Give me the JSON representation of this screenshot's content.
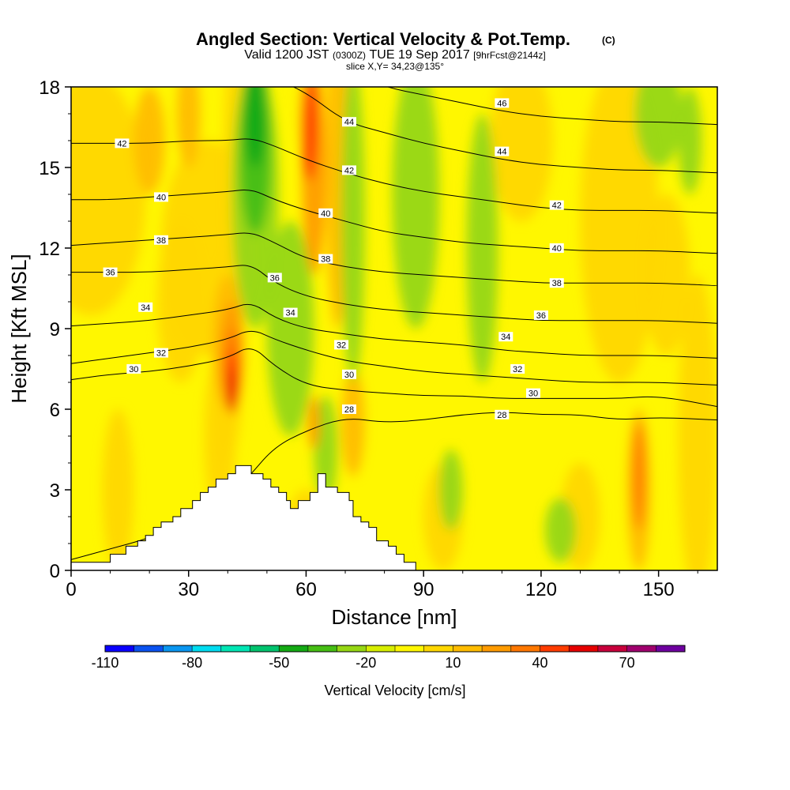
{
  "chart_data": {
    "type": "heatmap",
    "title": "Angled Section: Vertical Velocity & Pot.Temp.",
    "title_unit": "(C)",
    "subtitle": {
      "part1": "Valid 1200 JST",
      "part2": "(0300Z)",
      "part3": "TUE 19 Sep 2017",
      "part4": "[9hrFcst@2144z]"
    },
    "slice_text": "slice X,Y= 34,23@135°",
    "xlabel": "Distance [nm]",
    "ylabel": "Height [Kft MSL]",
    "xlim": [
      0,
      165
    ],
    "ylim": [
      0,
      18
    ],
    "x_ticks": [
      "0",
      "30",
      "60",
      "90",
      "120",
      "150"
    ],
    "y_ticks": [
      "0",
      "3",
      "6",
      "9",
      "12",
      "15",
      "18"
    ],
    "colorbar": {
      "label": "Vertical Velocity [cm/s]",
      "tick_labels": [
        "-110",
        "-80",
        "-50",
        "-20",
        "10",
        "40",
        "70"
      ],
      "colors": [
        "#0a00ff",
        "#0a52f0",
        "#0a96f0",
        "#00dcf0",
        "#00e6b4",
        "#00c36e",
        "#14aa14",
        "#46be14",
        "#96d714",
        "#d7ee00",
        "#fff700",
        "#ffd700",
        "#ffbc00",
        "#ff9b00",
        "#ff7800",
        "#ff3c00",
        "#e60000",
        "#c8003c",
        "#a0006e",
        "#6e00a0"
      ]
    },
    "terrain": {
      "x": [
        0,
        10,
        10,
        14,
        14,
        17,
        17,
        19,
        19,
        21,
        21,
        23,
        23,
        26,
        26,
        28,
        28,
        31,
        31,
        33,
        33,
        35,
        35,
        37,
        37,
        40,
        40,
        42,
        42,
        46,
        46,
        49,
        49,
        51,
        51,
        53,
        53,
        55,
        55,
        56,
        56,
        58,
        58,
        61,
        61,
        63,
        63,
        65,
        65,
        68,
        68,
        71,
        71,
        72,
        72,
        74,
        74,
        76,
        76,
        78,
        78,
        81,
        81,
        83,
        83,
        85,
        85,
        88,
        88,
        90,
        165
      ],
      "y": [
        0.3,
        0.3,
        0.6,
        0.6,
        0.9,
        0.9,
        1.1,
        1.1,
        1.3,
        1.3,
        1.6,
        1.6,
        1.8,
        1.8,
        2.0,
        2.0,
        2.3,
        2.3,
        2.6,
        2.6,
        2.9,
        2.9,
        3.1,
        3.1,
        3.4,
        3.4,
        3.6,
        3.6,
        3.9,
        3.9,
        3.6,
        3.6,
        3.4,
        3.4,
        3.1,
        3.1,
        2.9,
        2.9,
        2.6,
        2.6,
        2.3,
        2.3,
        2.6,
        2.6,
        2.9,
        2.9,
        3.6,
        3.6,
        3.1,
        3.1,
        2.9,
        2.9,
        2.6,
        2.6,
        2.0,
        2.0,
        1.8,
        1.8,
        1.6,
        1.6,
        1.1,
        1.1,
        0.9,
        0.9,
        0.6,
        0.6,
        0.3,
        0.3,
        0.0,
        0.0,
        0.0
      ]
    },
    "theta_contours": [
      {
        "value": 28,
        "heights": [
          0.4,
          0.8,
          1.2,
          1.8,
          2.6,
          3.6,
          4.6,
          5.2,
          5.7,
          5.5,
          5.6,
          5.8,
          5.9,
          5.8,
          5.8,
          5.6,
          5.7,
          5.6
        ]
      },
      {
        "value": 30,
        "heights": [
          7.1,
          7.3,
          7.4,
          7.6,
          7.9,
          8.4,
          7.6,
          6.9,
          6.7,
          6.6,
          6.5,
          6.5,
          6.4,
          6.4,
          6.4,
          6.4,
          6.5,
          6.1
        ]
      },
      {
        "value": 32,
        "heights": [
          7.7,
          7.9,
          8.1,
          8.3,
          8.6,
          9.0,
          8.6,
          8.2,
          7.8,
          7.6,
          7.4,
          7.3,
          7.2,
          7.1,
          7.0,
          7.0,
          7.0,
          6.9
        ]
      },
      {
        "value": 34,
        "heights": [
          9.1,
          9.2,
          9.3,
          9.5,
          9.7,
          10.0,
          9.4,
          9.0,
          8.8,
          8.6,
          8.5,
          8.4,
          8.2,
          8.1,
          8.0,
          8.0,
          8.0,
          7.9
        ]
      },
      {
        "value": 36,
        "heights": [
          11.1,
          11.1,
          11.1,
          11.2,
          11.3,
          11.4,
          10.7,
          10.2,
          9.9,
          9.7,
          9.6,
          9.5,
          9.4,
          9.3,
          9.3,
          9.3,
          9.3,
          9.2
        ]
      },
      {
        "value": 38,
        "heights": [
          12.1,
          12.2,
          12.3,
          12.4,
          12.5,
          12.6,
          12.2,
          11.6,
          11.3,
          11.1,
          11.0,
          10.9,
          10.8,
          10.7,
          10.7,
          10.7,
          10.7,
          10.6
        ]
      },
      {
        "value": 40,
        "heights": [
          13.8,
          13.8,
          13.9,
          14.0,
          14.1,
          14.2,
          13.8,
          13.4,
          13.0,
          12.6,
          12.4,
          12.2,
          12.1,
          12.0,
          11.9,
          11.9,
          11.9,
          11.8
        ]
      },
      {
        "value": 42,
        "heights": [
          15.9,
          15.9,
          15.9,
          16.0,
          16.0,
          16.1,
          15.8,
          15.3,
          14.8,
          14.4,
          14.1,
          13.9,
          13.7,
          13.5,
          13.4,
          13.4,
          13.4,
          13.3
        ]
      },
      {
        "value": 44,
        "heights": [
          18.5,
          18.5,
          18.5,
          18.5,
          18.5,
          18.5,
          18.3,
          17.8,
          16.7,
          16.3,
          15.9,
          15.6,
          15.3,
          15.1,
          15.0,
          14.9,
          14.9,
          14.8
        ]
      },
      {
        "value": 46,
        "heights": [
          19.5,
          19.5,
          19.5,
          19.5,
          19.5,
          19.5,
          19.5,
          19.5,
          18.6,
          18.0,
          17.7,
          17.4,
          17.1,
          16.9,
          16.8,
          16.7,
          16.7,
          16.6
        ]
      }
    ],
    "contour_x": [
      0,
      10,
      20,
      30,
      40,
      46,
      52,
      60,
      70,
      80,
      90,
      100,
      110,
      120,
      130,
      140,
      150,
      165
    ],
    "contour_labels": [
      {
        "text": "42",
        "x": 13,
        "y": 15.9
      },
      {
        "text": "40",
        "x": 23,
        "y": 13.9
      },
      {
        "text": "38",
        "x": 23,
        "y": 12.3
      },
      {
        "text": "36",
        "x": 10,
        "y": 11.1
      },
      {
        "text": "34",
        "x": 19,
        "y": 9.8
      },
      {
        "text": "32",
        "x": 23,
        "y": 8.1
      },
      {
        "text": "30",
        "x": 16,
        "y": 7.5
      },
      {
        "text": "44",
        "x": 71,
        "y": 16.7
      },
      {
        "text": "42",
        "x": 71,
        "y": 14.9
      },
      {
        "text": "40",
        "x": 65,
        "y": 13.3
      },
      {
        "text": "38",
        "x": 65,
        "y": 11.6
      },
      {
        "text": "36",
        "x": 52,
        "y": 10.9
      },
      {
        "text": "34",
        "x": 56,
        "y": 9.6
      },
      {
        "text": "32",
        "x": 69,
        "y": 8.4
      },
      {
        "text": "30",
        "x": 71,
        "y": 7.3
      },
      {
        "text": "28",
        "x": 71,
        "y": 6.0
      },
      {
        "text": "46",
        "x": 110,
        "y": 17.4
      },
      {
        "text": "44",
        "x": 110,
        "y": 15.6
      },
      {
        "text": "42",
        "x": 124,
        "y": 13.6
      },
      {
        "text": "40",
        "x": 124,
        "y": 12.0
      },
      {
        "text": "38",
        "x": 124,
        "y": 10.7
      },
      {
        "text": "36",
        "x": 120,
        "y": 9.5
      },
      {
        "text": "34",
        "x": 111,
        "y": 8.7
      },
      {
        "text": "32",
        "x": 114,
        "y": 7.5
      },
      {
        "text": "30",
        "x": 118,
        "y": 6.6
      },
      {
        "text": "28",
        "x": 110,
        "y": 5.8
      }
    ]
  }
}
